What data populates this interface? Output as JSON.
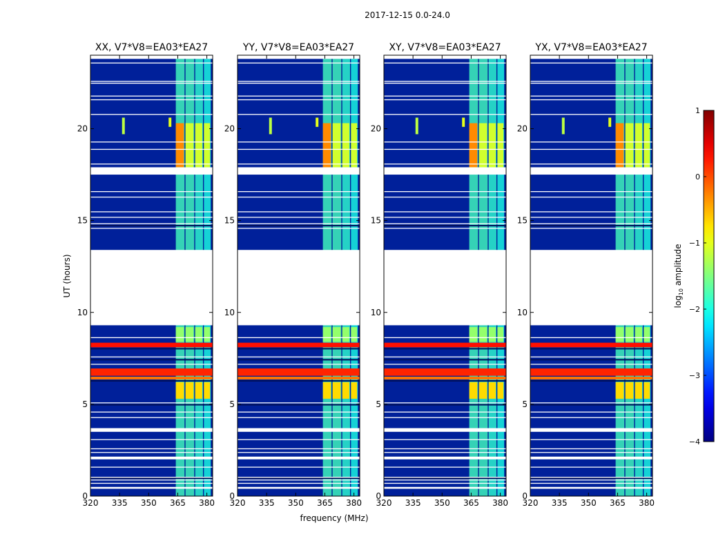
{
  "figure": {
    "suptitle": "2017-12-15 0.0-24.0",
    "xlabel": "frequency (MHz)",
    "ylabel": "UT (hours)"
  },
  "colors": {
    "background": "#00209a",
    "spectral_window_band": "#3fa8e6",
    "rfi_high": "#d01a0a",
    "flagged": "#ffffff"
  },
  "chart_data": {
    "type": "heatmap",
    "title": "2017-12-15 0.0-24.0",
    "xlabel": "frequency (MHz)",
    "ylabel": "UT (hours)",
    "xlim": [
      320,
      383
    ],
    "ylim": [
      0,
      24
    ],
    "xticks": [
      320,
      335,
      350,
      365,
      380
    ],
    "yticks": [
      0,
      5,
      10,
      15,
      20
    ],
    "panels": [
      {
        "title": "XX, V7*V8=EA03*EA27"
      },
      {
        "title": "YY, V7*V8=EA03*EA27"
      },
      {
        "title": "XY, V7*V8=EA03*EA27"
      },
      {
        "title": "YX, V7*V8=EA03*EA27"
      }
    ],
    "colorbar": {
      "label": "log10 amplitude",
      "label_main": "log",
      "label_sub": "10",
      "label_rest": " amplitude",
      "range": [
        -4,
        1
      ],
      "ticks": [
        -4,
        -3,
        -2,
        -1,
        0,
        1
      ],
      "colormap": "jet"
    },
    "flagged_gaps_hours": [
      [
        9.3,
        13.4
      ],
      [
        17.5,
        17.9
      ],
      [
        3.5,
        3.7
      ],
      [
        0.4,
        0.5
      ],
      [
        2.0,
        2.15
      ],
      [
        23.8,
        24.0
      ]
    ],
    "channels": [
      {
        "freq": [
          364.0,
          368.5
        ],
        "level": -1.8
      },
      {
        "freq": [
          369.0,
          373.5
        ],
        "level": -1.8
      },
      {
        "freq": [
          374.0,
          378.0
        ],
        "level": -1.9
      },
      {
        "freq": [
          378.5,
          382.0
        ],
        "level": -2.0
      }
    ],
    "rfi_bands": [
      {
        "time": [
          8.1,
          8.35
        ],
        "level": 0.3
      },
      {
        "time": [
          6.55,
          6.95
        ],
        "level": 0.2
      },
      {
        "time": [
          6.35,
          6.5
        ],
        "level": -0.2
      }
    ],
    "bright_blocks": [
      {
        "time": [
          17.9,
          20.3
        ],
        "level": -1.1,
        "note": "strongest near 364-368 MHz"
      },
      {
        "time": [
          5.3,
          6.2
        ],
        "level": -0.7
      },
      {
        "time": [
          8.4,
          9.2
        ],
        "level": -1.4
      }
    ],
    "features": [
      {
        "time": [
          19.7,
          20.6
        ],
        "freq": 337,
        "level": -1.2
      },
      {
        "time": [
          20.1,
          20.6
        ],
        "freq": 361,
        "level": -1.0
      }
    ]
  }
}
